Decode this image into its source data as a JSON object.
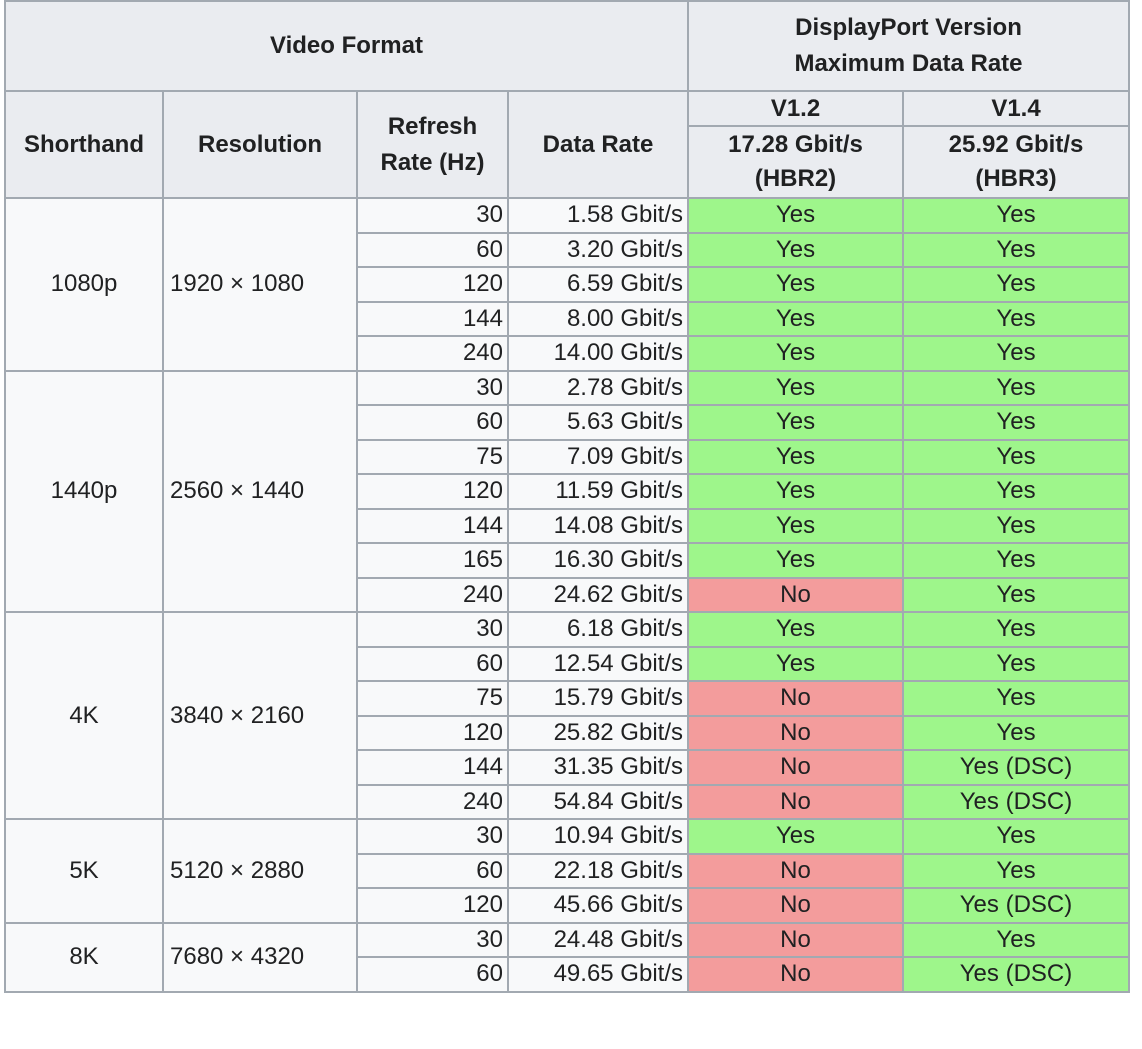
{
  "header": {
    "video_format": "Video Format",
    "dp_version_line1": "DisplayPort Version",
    "dp_version_line2": "Maximum Data Rate",
    "shorthand": "Shorthand",
    "resolution": "Resolution",
    "refresh_line1": "Refresh",
    "refresh_line2": "Rate (Hz)",
    "data_rate": "Data Rate",
    "v12": "V1.2",
    "v14": "V1.4",
    "v12_rate": "17.28 Gbit/s",
    "v12_mode": "(HBR2)",
    "v14_rate": "25.92 Gbit/s",
    "v14_mode": "(HBR3)"
  },
  "formats": [
    {
      "shorthand": "1080p",
      "resolution": "1920 × 1080",
      "rows": [
        {
          "hz": "30",
          "rate": "1.58 Gbit/s",
          "v12": "Yes",
          "v14": "Yes"
        },
        {
          "hz": "60",
          "rate": "3.20 Gbit/s",
          "v12": "Yes",
          "v14": "Yes"
        },
        {
          "hz": "120",
          "rate": "6.59 Gbit/s",
          "v12": "Yes",
          "v14": "Yes"
        },
        {
          "hz": "144",
          "rate": "8.00 Gbit/s",
          "v12": "Yes",
          "v14": "Yes"
        },
        {
          "hz": "240",
          "rate": "14.00 Gbit/s",
          "v12": "Yes",
          "v14": "Yes"
        }
      ]
    },
    {
      "shorthand": "1440p",
      "resolution": "2560 × 1440",
      "rows": [
        {
          "hz": "30",
          "rate": "2.78 Gbit/s",
          "v12": "Yes",
          "v14": "Yes"
        },
        {
          "hz": "60",
          "rate": "5.63 Gbit/s",
          "v12": "Yes",
          "v14": "Yes"
        },
        {
          "hz": "75",
          "rate": "7.09 Gbit/s",
          "v12": "Yes",
          "v14": "Yes"
        },
        {
          "hz": "120",
          "rate": "11.59 Gbit/s",
          "v12": "Yes",
          "v14": "Yes"
        },
        {
          "hz": "144",
          "rate": "14.08 Gbit/s",
          "v12": "Yes",
          "v14": "Yes"
        },
        {
          "hz": "165",
          "rate": "16.30 Gbit/s",
          "v12": "Yes",
          "v14": "Yes"
        },
        {
          "hz": "240",
          "rate": "24.62 Gbit/s",
          "v12": "No",
          "v14": "Yes"
        }
      ]
    },
    {
      "shorthand": "4K",
      "resolution": "3840 × 2160",
      "rows": [
        {
          "hz": "30",
          "rate": "6.18 Gbit/s",
          "v12": "Yes",
          "v14": "Yes"
        },
        {
          "hz": "60",
          "rate": "12.54 Gbit/s",
          "v12": "Yes",
          "v14": "Yes"
        },
        {
          "hz": "75",
          "rate": "15.79 Gbit/s",
          "v12": "No",
          "v14": "Yes"
        },
        {
          "hz": "120",
          "rate": "25.82 Gbit/s",
          "v12": "No",
          "v14": "Yes"
        },
        {
          "hz": "144",
          "rate": "31.35 Gbit/s",
          "v12": "No",
          "v14": "Yes (DSC)"
        },
        {
          "hz": "240",
          "rate": "54.84 Gbit/s",
          "v12": "No",
          "v14": "Yes (DSC)"
        }
      ]
    },
    {
      "shorthand": "5K",
      "resolution": "5120 × 2880",
      "rows": [
        {
          "hz": "30",
          "rate": "10.94 Gbit/s",
          "v12": "Yes",
          "v14": "Yes"
        },
        {
          "hz": "60",
          "rate": "22.18 Gbit/s",
          "v12": "No",
          "v14": "Yes"
        },
        {
          "hz": "120",
          "rate": "45.66 Gbit/s",
          "v12": "No",
          "v14": "Yes (DSC)"
        }
      ]
    },
    {
      "shorthand": "8K",
      "resolution": "7680 × 4320",
      "rows": [
        {
          "hz": "30",
          "rate": "24.48 Gbit/s",
          "v12": "No",
          "v14": "Yes"
        },
        {
          "hz": "60",
          "rate": "49.65 Gbit/s",
          "v12": "No",
          "v14": "Yes (DSC)"
        }
      ]
    }
  ],
  "colors": {
    "supported": "#9ef68b",
    "unsupported": "#f39c9c",
    "header_bg": "#eaecf0",
    "cell_bg": "#f8f9fa",
    "border": "#a2a9b1"
  }
}
